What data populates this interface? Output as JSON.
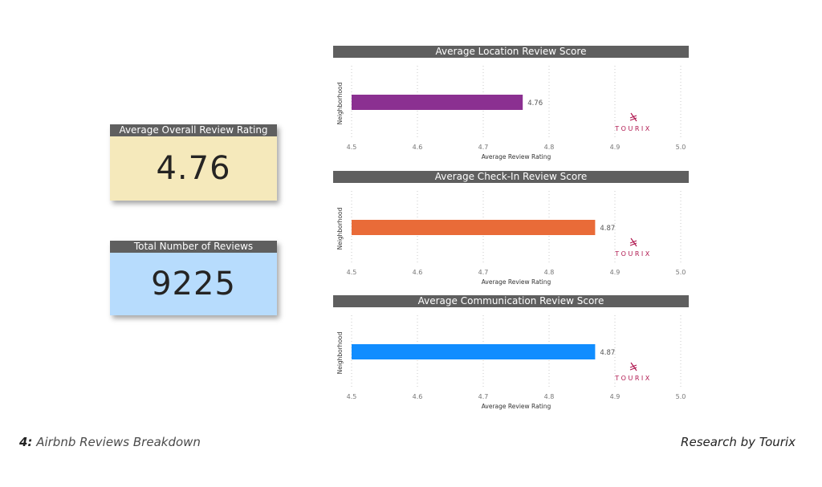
{
  "kpis": [
    {
      "title": "Average Overall Review Rating",
      "value": "4.76",
      "background": "#f5e9bb"
    },
    {
      "title": "Total Number of Reviews",
      "value": "9225",
      "background": "#b7dcfd"
    }
  ],
  "watermark": {
    "text": "TOURIX",
    "color": "#b0174f",
    "icon": "tourix-logo-icon"
  },
  "chart_data": [
    {
      "type": "bar",
      "orientation": "horizontal",
      "title": "Average Location Review Score",
      "xlabel": "Average Review Rating",
      "ylabel": "Neighborhood",
      "xlim": [
        4.5,
        5.0
      ],
      "xticks": [
        "4.5",
        "4.6",
        "4.7",
        "4.8",
        "4.9",
        "5.0"
      ],
      "categories": [
        ""
      ],
      "values": [
        4.76
      ],
      "data_labels": [
        "4.76"
      ],
      "color": "#8b3091",
      "grid": true
    },
    {
      "type": "bar",
      "orientation": "horizontal",
      "title": "Average Check-In Review Score",
      "xlabel": "Average Review Rating",
      "ylabel": "Neighborhood",
      "xlim": [
        4.5,
        5.0
      ],
      "xticks": [
        "4.5",
        "4.6",
        "4.7",
        "4.8",
        "4.9",
        "5.0"
      ],
      "categories": [
        ""
      ],
      "values": [
        4.87
      ],
      "data_labels": [
        "4.87"
      ],
      "color": "#e96b38",
      "grid": true
    },
    {
      "type": "bar",
      "orientation": "horizontal",
      "title": "Average Communication Review Score",
      "xlabel": "Average Review Rating",
      "ylabel": "Neighborhood",
      "xlim": [
        4.5,
        5.0
      ],
      "xticks": [
        "4.5",
        "4.6",
        "4.7",
        "4.8",
        "4.9",
        "5.0"
      ],
      "categories": [
        ""
      ],
      "values": [
        4.87
      ],
      "data_labels": [
        "4.87"
      ],
      "color": "#118dff",
      "grid": true
    }
  ],
  "footer": {
    "figure_number": "4:",
    "caption": " Airbnb Reviews Breakdown",
    "credit": "Research by Tourix"
  }
}
